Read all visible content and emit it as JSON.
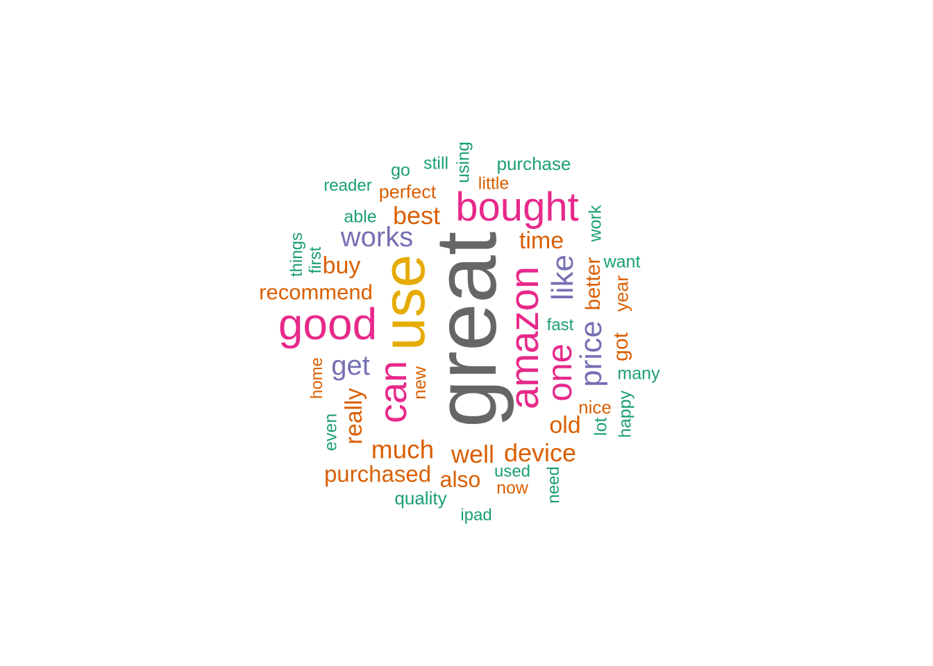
{
  "colors": {
    "gray": "#666666",
    "gold": "#e6ab02",
    "pink": "#e7298a",
    "purple": "#7570b3",
    "orange": "#d95f02",
    "green": "#1b9e77"
  },
  "words": [
    "great",
    "use",
    "good",
    "bought",
    "amazon",
    "can",
    "one",
    "price",
    "like",
    "works",
    "get",
    "best",
    "time",
    "buy",
    "recommend",
    "much",
    "device",
    "well",
    "purchased",
    "also",
    "really",
    "old",
    "better",
    "got",
    "year",
    "nice",
    "new",
    "home",
    "purchase",
    "little",
    "perfect",
    "still",
    "using",
    "go",
    "reader",
    "able",
    "work",
    "things",
    "first",
    "want",
    "fast",
    "many",
    "happy",
    "lot",
    "even",
    "used",
    "now",
    "need",
    "quality",
    "ipad"
  ]
}
